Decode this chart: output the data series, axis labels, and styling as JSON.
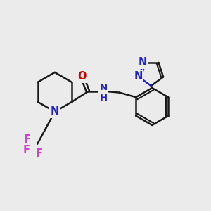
{
  "bg_color": "#ebebeb",
  "bond_color": "#1a1a1a",
  "N_color": "#2020cc",
  "O_color": "#cc0000",
  "F_color": "#cc44cc",
  "line_width": 1.8,
  "font_size": 10.5,
  "xlim": [
    0,
    10
  ],
  "ylim": [
    0,
    10
  ]
}
